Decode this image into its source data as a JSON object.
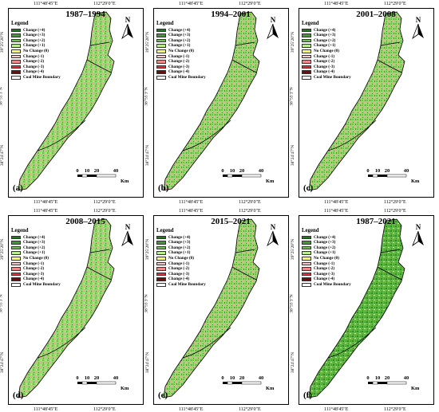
{
  "coords": {
    "top_left": "111°48′45″E",
    "top_right": "112°29′0″E",
    "left_top": "39°25′20″N",
    "left_mid": "38°55′3″N",
    "left_bottom": "38°24′47″N"
  },
  "legend": {
    "title": "Legend",
    "items": [
      {
        "label": "Change (+4)",
        "color": "#1f7a1f"
      },
      {
        "label": "Change (+3)",
        "color": "#3f9b2f"
      },
      {
        "label": "Change (+2)",
        "color": "#6cc24a"
      },
      {
        "label": "Change (+1)",
        "color": "#b8ec8e"
      },
      {
        "label": "No Change (0)",
        "color": "#ffff66"
      },
      {
        "label": "Change (-1)",
        "color": "#f4c6c6"
      },
      {
        "label": "Change (-2)",
        "color": "#f08a8a"
      },
      {
        "label": "Change (-3)",
        "color": "#e0303a"
      },
      {
        "label": "Change (-4)",
        "color": "#7a0a0a"
      },
      {
        "label": "Coal Mine Boundary",
        "color": "#ffffff"
      }
    ]
  },
  "north_label": "N",
  "scale": {
    "ticks": [
      "0",
      "10",
      "20",
      "40"
    ],
    "unit": "Km"
  },
  "panels": [
    {
      "title": "1987–1994",
      "letter": "(a)",
      "green": 0.55
    },
    {
      "title": "1994–2001",
      "letter": "(b)",
      "green": 0.6
    },
    {
      "title": "2001–2008",
      "letter": "(c)",
      "green": 0.62
    },
    {
      "title": "2008–2015",
      "letter": "(d)",
      "green": 0.5
    },
    {
      "title": "2015–2021",
      "letter": "(e)",
      "green": 0.58
    },
    {
      "title": "1987–2021",
      "letter": "(f)",
      "green": 0.8
    }
  ]
}
